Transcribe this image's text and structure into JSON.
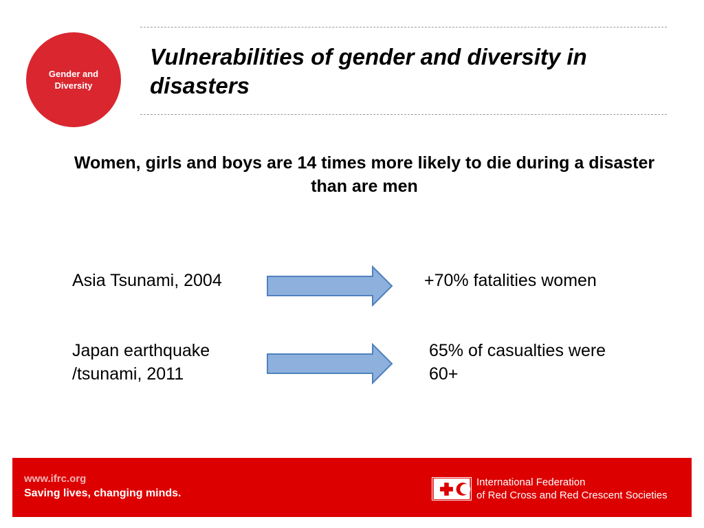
{
  "badge": {
    "label_line1": "Gender and",
    "label_line2": "Diversity"
  },
  "title": "Vulnerabilities of gender and diversity in disasters",
  "subtitle": "Women, girls and boys are 14 times more likely to die during a disaster than are men",
  "rows": [
    {
      "left_line1": "Asia Tsunami, 2004",
      "left_line2": "",
      "right_line1": "+70% fatalities women",
      "right_line2": ""
    },
    {
      "left_line1": "Japan earthquake",
      "left_line2": "/tsunami, 2011",
      "right_line1": "65% of casualties were",
      "right_line2": "60+"
    }
  ],
  "footer": {
    "website": "www.ifrc.org",
    "tagline": "Saving lives, changing minds.",
    "org_line1": "International Federation",
    "org_line2": "of Red Cross and Red Crescent Societies"
  },
  "colors": {
    "accent": "#d9262f",
    "footer": "#dd0000",
    "arrow_fill": "#8eb0dd",
    "arrow_stroke": "#4f81bd"
  }
}
